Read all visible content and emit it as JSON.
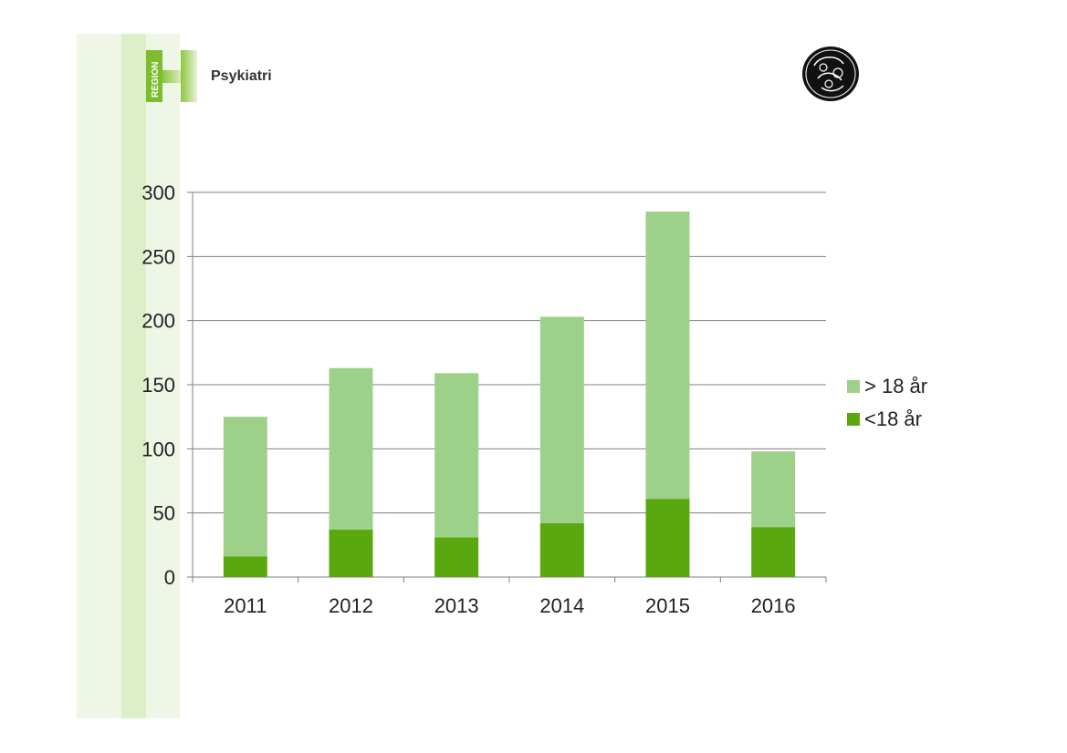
{
  "header": {
    "logo_text": "REGION",
    "brand": "Psykiatri"
  },
  "colors": {
    "adult": "#9dd18a",
    "child": "#5aa80f",
    "grid": "#7f7f7f"
  },
  "chart_data": {
    "type": "bar",
    "stacked": true,
    "title": "",
    "xlabel": "",
    "ylabel": "",
    "ylim": [
      0,
      300
    ],
    "yticks": [
      0,
      50,
      100,
      150,
      200,
      250,
      300
    ],
    "categories": [
      "2011",
      "2012",
      "2013",
      "2014",
      "2015",
      "2016"
    ],
    "series": [
      {
        "name": "<18 år",
        "values": [
          16,
          37,
          31,
          42,
          61,
          39
        ]
      },
      {
        "name": "> 18 år",
        "values": [
          109,
          126,
          128,
          161,
          224,
          59
        ]
      }
    ],
    "legend": {
      "position": "right",
      "items": [
        "> 18 år",
        "<18 år"
      ]
    }
  }
}
